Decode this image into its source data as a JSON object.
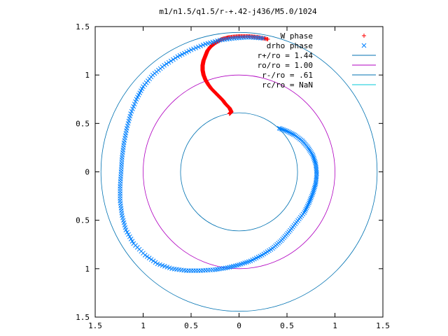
{
  "chart_data": {
    "type": "scatter",
    "title": "m1/n1.5/q1.5/r-+.42-j436/M5.0/1024",
    "xlim": [
      -1.5,
      1.5
    ],
    "ylim": [
      -1.5,
      1.5
    ],
    "x_ticks": [
      "1.5",
      "1",
      "0.5",
      "0",
      "0.5",
      "1",
      "1.5"
    ],
    "y_ticks": [
      "1.5",
      "1",
      "0.5",
      "0",
      "0.5",
      "1",
      "1.5"
    ],
    "x_tick_values": [
      -1.5,
      -1,
      -0.5,
      0,
      0.5,
      1,
      1.5
    ],
    "y_tick_values": [
      1.5,
      1,
      0.5,
      0,
      -0.5,
      -1,
      -1.5
    ],
    "grid": false,
    "legend_position": "top-right",
    "series": [
      {
        "name": "W phase",
        "marker": "+",
        "color": "#ff0000",
        "points": [
          [
            -0.1,
            0.6
          ],
          [
            -0.08,
            0.62
          ],
          [
            -0.1,
            0.66
          ],
          [
            -0.14,
            0.7
          ],
          [
            -0.17,
            0.74
          ],
          [
            -0.21,
            0.78
          ],
          [
            -0.25,
            0.82
          ],
          [
            -0.29,
            0.86
          ],
          [
            -0.32,
            0.9
          ],
          [
            -0.35,
            0.95
          ],
          [
            -0.37,
            1.0
          ],
          [
            -0.38,
            1.05
          ],
          [
            -0.38,
            1.1
          ],
          [
            -0.37,
            1.15
          ],
          [
            -0.35,
            1.2
          ],
          [
            -0.33,
            1.25
          ],
          [
            -0.3,
            1.29
          ],
          [
            -0.25,
            1.33
          ],
          [
            -0.18,
            1.37
          ],
          [
            -0.1,
            1.39
          ],
          [
            0.0,
            1.4
          ],
          [
            0.1,
            1.4
          ],
          [
            0.2,
            1.39
          ],
          [
            0.3,
            1.37
          ]
        ]
      },
      {
        "name": "drho phase",
        "marker": "x",
        "color": "#0080ff",
        "points": [
          [
            0.42,
            0.45
          ],
          [
            0.5,
            0.42
          ],
          [
            0.58,
            0.38
          ],
          [
            0.66,
            0.32
          ],
          [
            0.72,
            0.25
          ],
          [
            0.77,
            0.17
          ],
          [
            0.8,
            0.08
          ],
          [
            0.81,
            -0.02
          ],
          [
            0.8,
            -0.12
          ],
          [
            0.77,
            -0.22
          ],
          [
            0.73,
            -0.32
          ],
          [
            0.68,
            -0.42
          ],
          [
            0.6,
            -0.52
          ],
          [
            0.52,
            -0.62
          ],
          [
            0.44,
            -0.71
          ],
          [
            0.35,
            -0.79
          ],
          [
            0.24,
            -0.86
          ],
          [
            0.12,
            -0.92
          ],
          [
            0.0,
            -0.96
          ],
          [
            -0.12,
            -0.99
          ],
          [
            -0.25,
            -1.01
          ],
          [
            -0.4,
            -1.02
          ],
          [
            -0.55,
            -1.02
          ],
          [
            -0.7,
            -1.0
          ],
          [
            -0.85,
            -0.95
          ],
          [
            -0.98,
            -0.86
          ],
          [
            -1.1,
            -0.74
          ],
          [
            -1.18,
            -0.6
          ],
          [
            -1.22,
            -0.45
          ],
          [
            -1.24,
            -0.3
          ],
          [
            -1.24,
            -0.15
          ],
          [
            -1.23,
            0.0
          ],
          [
            -1.22,
            0.15
          ],
          [
            -1.2,
            0.3
          ],
          [
            -1.17,
            0.45
          ],
          [
            -1.13,
            0.6
          ],
          [
            -1.07,
            0.75
          ],
          [
            -1.0,
            0.88
          ],
          [
            -0.9,
            1.0
          ],
          [
            -0.78,
            1.1
          ],
          [
            -0.64,
            1.19
          ],
          [
            -0.5,
            1.26
          ],
          [
            -0.35,
            1.32
          ],
          [
            -0.2,
            1.36
          ],
          [
            -0.05,
            1.38
          ],
          [
            0.1,
            1.39
          ],
          [
            0.25,
            1.38
          ]
        ]
      },
      {
        "name": "r+/ro = 1.44",
        "type": "circle",
        "radius": 1.44,
        "color": "#0072b2"
      },
      {
        "name": "ro/ro = 1.00",
        "type": "circle",
        "radius": 1.0,
        "color": "#b000c0"
      },
      {
        "name": "r-/ro = .61",
        "type": "circle",
        "radius": 0.61,
        "color": "#0072b2"
      },
      {
        "name": "rc/ro = NaN",
        "type": "circle",
        "radius": null,
        "color": "#00c8d8"
      }
    ]
  }
}
